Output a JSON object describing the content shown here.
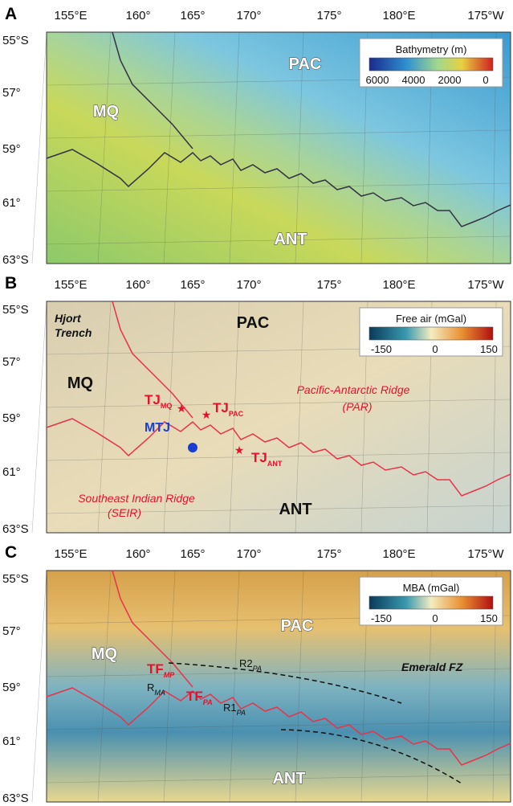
{
  "panels": [
    {
      "letter": "A",
      "lon_labels": [
        "155°E",
        "160°",
        "165°",
        "170°",
        "175°",
        "180°E",
        "175°W"
      ],
      "lat_labels": [
        "55°S",
        "57°",
        "59°",
        "61°",
        "63°S"
      ],
      "colorbar": {
        "title": "Bathymetry (m)",
        "ticks": [
          "6000",
          "4000",
          "2000",
          "0"
        ]
      },
      "labels": [
        {
          "text": "PAC"
        },
        {
          "text": "MQ"
        },
        {
          "text": "ANT"
        }
      ]
    },
    {
      "letter": "B",
      "lon_labels": [
        "155°E",
        "160°",
        "165°",
        "170°",
        "175°",
        "180°E",
        "175°W"
      ],
      "lat_labels": [
        "55°S",
        "57°",
        "59°",
        "61°",
        "63°S"
      ],
      "colorbar": {
        "title": "Free air (mGal)",
        "ticks": [
          "-150",
          "0",
          "150"
        ]
      },
      "labels": [
        {
          "text": "Hjort"
        },
        {
          "text": "Trench"
        },
        {
          "text": "PAC"
        },
        {
          "text": "MQ"
        },
        {
          "text": "TJ",
          "sub": "MQ"
        },
        {
          "text": "MTJ"
        },
        {
          "text": "TJ",
          "sub": "PAC"
        },
        {
          "text": "TJ",
          "sub": "ANT"
        },
        {
          "text": "Pacific-Antarctic Ridge"
        },
        {
          "text": "(PAR)"
        },
        {
          "text": "Southeast Indian Ridge"
        },
        {
          "text": "(SEIR)"
        },
        {
          "text": "ANT"
        }
      ]
    },
    {
      "letter": "C",
      "lon_labels": [
        "155°E",
        "160°",
        "165°",
        "170°",
        "175°",
        "180°E",
        "175°W"
      ],
      "lat_labels": [
        "55°S",
        "57°",
        "59°",
        "61°",
        "63°S"
      ],
      "colorbar": {
        "title": "MBA (mGal)",
        "ticks": [
          "-150",
          "0",
          "150"
        ]
      },
      "labels": [
        {
          "text": "PAC"
        },
        {
          "text": "MQ"
        },
        {
          "text": "TF",
          "sub": "MP"
        },
        {
          "text": "R2",
          "sub": "PA"
        },
        {
          "text": "R",
          "sub": "MA"
        },
        {
          "text": "TF",
          "sub": "PA"
        },
        {
          "text": "R1",
          "sub": "PA"
        },
        {
          "text": "Emerald FZ"
        },
        {
          "text": "ANT"
        }
      ]
    }
  ]
}
